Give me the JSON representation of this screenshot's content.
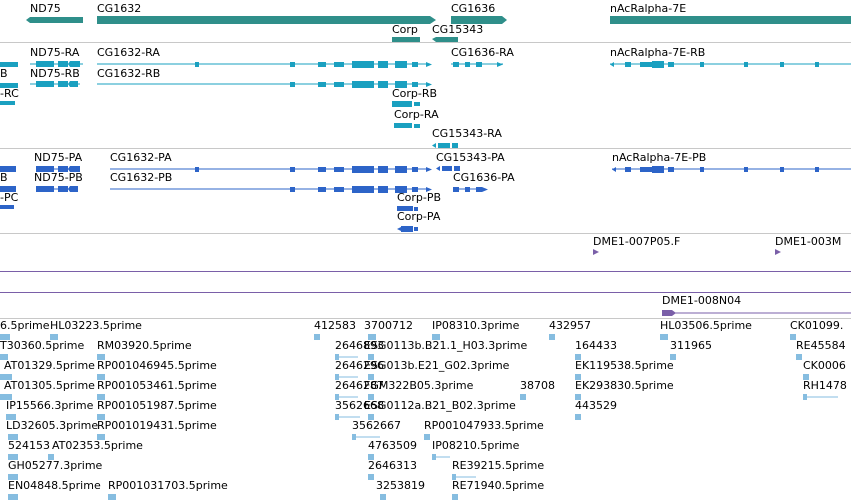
{
  "colors": {
    "gene": "#2f8f8a",
    "rna": "#1aa0c0",
    "protein": "#2d64c8",
    "clone": "#7a5fa8",
    "est": "#86bde0",
    "separator": "#c8c8c8"
  },
  "genes": [
    "ND75",
    "CG1632",
    "CG1636",
    "nAcRalpha-7E",
    "Corp",
    "CG15343"
  ],
  "transcripts": [
    "ND75-RA",
    "CG1632-RA",
    "CG1636-RA",
    "nAcRalpha-7E-RB",
    "B",
    "ND75-RB",
    "CG1632-RB",
    "-RC",
    "Corp-RB",
    "Corp-RA",
    "CG15343-RA"
  ],
  "proteins": [
    "ND75-PA",
    "CG1632-PA",
    "CG15343-PA",
    "nAcRalpha-7E-PB",
    "B",
    "ND75-PB",
    "CG1632-PB",
    "CG1636-PA",
    "-PC",
    "Corp-PB",
    "Corp-PA"
  ],
  "clones": [
    "DME1-007P05.F",
    "DME1-003M",
    "DME1-008N04"
  ],
  "ests": [
    "6.5prime",
    "HL03223.5prime",
    "412583",
    "3700712",
    "IP08310.3prime",
    "432957",
    "HL03506.5prime",
    "CK01099.",
    "T30360.5prime",
    "RM03920.5prime",
    "2646893",
    "ESG0113b.B21.1_H03.3prime",
    "164433",
    "311965",
    "RE45584",
    "AT01329.5prime",
    "RP001046945.5prime",
    "2646296",
    "ESG013b.E21_G02.3prime",
    "EK119538.5prime",
    "CK0006",
    "AT01305.5prime",
    "RP001053461.5prime",
    "2646287",
    "FGM322B05.3prime",
    "38708",
    "EK293830.5prime",
    "RH1478",
    "IP15566.3prime",
    "RP001051987.5prime",
    "3562668",
    "ESG0112a.B21_B02.3prime",
    "443529",
    "LD32605.3prime",
    "RP001019431.5prime",
    "3562667",
    "RP001047933.5prime",
    "524153",
    "AT02353.5prime",
    "4763509",
    "IP08210.5prime",
    "GH05277.3prime",
    "2646313",
    "RE39215.5prime",
    "EN04848.5prime",
    "RP001031703.5prime",
    "3253819",
    "RE71940.5prime"
  ]
}
